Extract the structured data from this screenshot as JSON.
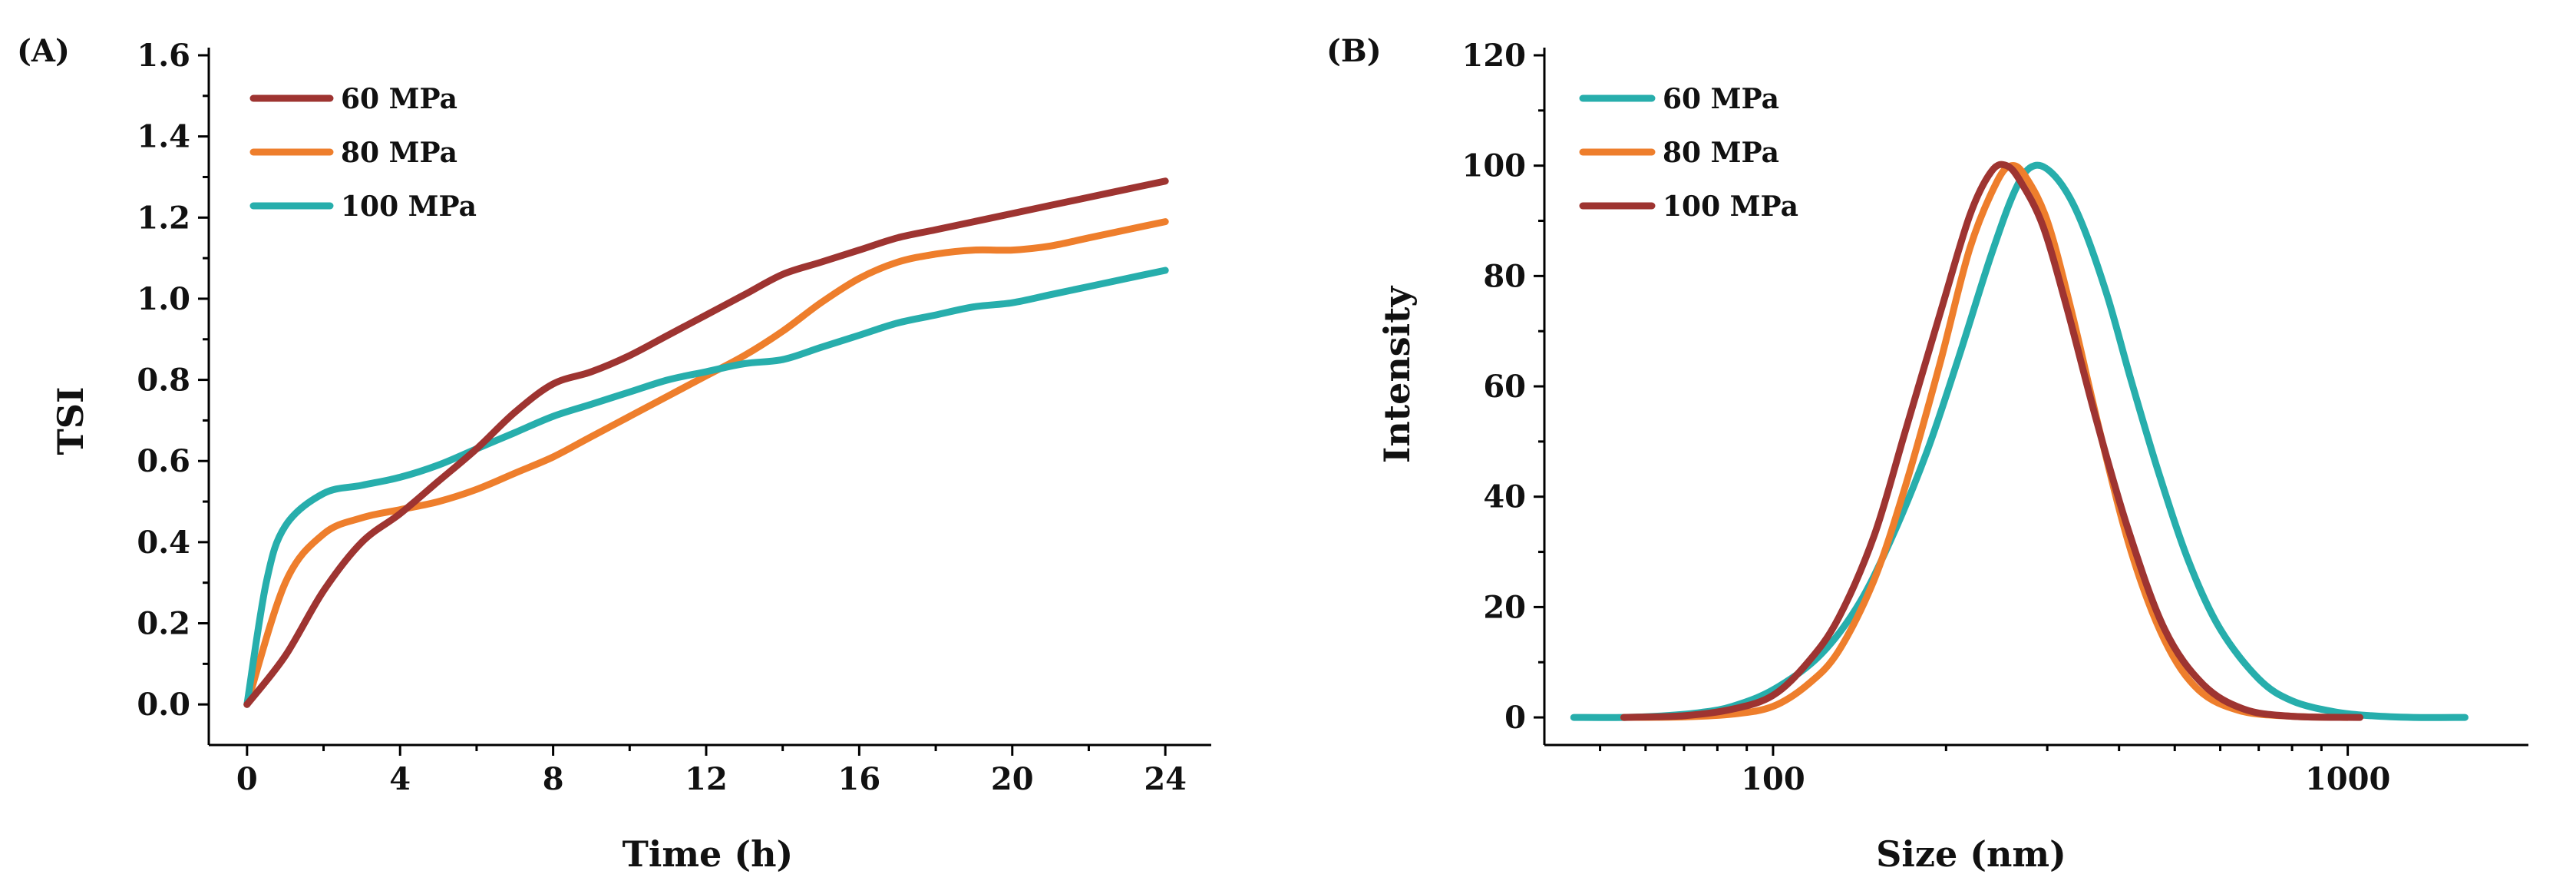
{
  "figure": {
    "panels": [
      "(A)",
      "(B)"
    ]
  },
  "colors": {
    "p60": "#9e3431",
    "p80": "#ee7e2c",
    "p100": "#27aeac"
  },
  "chart_data": [
    {
      "type": "line",
      "label": "(A)",
      "title": "",
      "xlabel": "Time (h)",
      "ylabel": "TSI",
      "xlim": [
        -1,
        25
      ],
      "ylim": [
        -0.1,
        1.6
      ],
      "xticks": [
        0,
        4,
        8,
        12,
        16,
        20,
        24
      ],
      "yticks": [
        0.0,
        0.2,
        0.4,
        0.6,
        0.8,
        1.0,
        1.2,
        1.4,
        1.6
      ],
      "xtick_labels": [
        "0",
        "4",
        "8",
        "12",
        "16",
        "20",
        "24"
      ],
      "ytick_labels": [
        "0.0",
        "0.2",
        "0.4",
        "0.6",
        "0.8",
        "1.0",
        "1.2",
        "1.4",
        "1.6"
      ],
      "legend_position": "top-left",
      "series": [
        {
          "name": "60 MPa",
          "color_key": "p60",
          "x": [
            0,
            1,
            2,
            3,
            4,
            5,
            6,
            7,
            8,
            9,
            10,
            11,
            12,
            13,
            14,
            15,
            16,
            17,
            18,
            19,
            20,
            21,
            22,
            23,
            24
          ],
          "y": [
            0,
            0.12,
            0.28,
            0.4,
            0.47,
            0.55,
            0.63,
            0.72,
            0.79,
            0.82,
            0.86,
            0.91,
            0.96,
            1.01,
            1.06,
            1.09,
            1.12,
            1.15,
            1.17,
            1.19,
            1.21,
            1.23,
            1.25,
            1.27,
            1.29
          ]
        },
        {
          "name": "80 MPa",
          "color_key": "p80",
          "x": [
            0,
            1,
            2,
            3,
            4,
            5,
            6,
            7,
            8,
            9,
            10,
            11,
            12,
            13,
            14,
            15,
            16,
            17,
            18,
            19,
            20,
            21,
            22,
            23,
            24
          ],
          "y": [
            0,
            0.3,
            0.42,
            0.46,
            0.48,
            0.5,
            0.53,
            0.57,
            0.61,
            0.66,
            0.71,
            0.76,
            0.81,
            0.86,
            0.92,
            0.99,
            1.05,
            1.09,
            1.11,
            1.12,
            1.12,
            1.13,
            1.15,
            1.17,
            1.19
          ]
        },
        {
          "name": "100 MPa",
          "color_key": "p100",
          "x": [
            0,
            0.5,
            1,
            2,
            3,
            4,
            5,
            6,
            7,
            8,
            9,
            10,
            11,
            12,
            13,
            14,
            15,
            16,
            17,
            18,
            19,
            20,
            21,
            22,
            23,
            24
          ],
          "y": [
            0,
            0.3,
            0.44,
            0.52,
            0.54,
            0.56,
            0.59,
            0.63,
            0.67,
            0.71,
            0.74,
            0.77,
            0.8,
            0.82,
            0.84,
            0.85,
            0.88,
            0.91,
            0.94,
            0.96,
            0.98,
            0.99,
            1.01,
            1.03,
            1.05,
            1.07
          ]
        }
      ]
    },
    {
      "type": "line",
      "label": "(B)",
      "title": "",
      "xlabel": "Size (nm)",
      "ylabel": "Intensity",
      "xscale": "log",
      "xlim": [
        40,
        2000
      ],
      "ylim": [
        -5,
        120
      ],
      "xticks": [
        100,
        1000
      ],
      "yticks": [
        0,
        20,
        40,
        60,
        80,
        100,
        120
      ],
      "xtick_labels": [
        "100",
        "1000"
      ],
      "ytick_labels": [
        "0",
        "20",
        "40",
        "60",
        "80",
        "100",
        "120"
      ],
      "legend_position": "top-left",
      "series": [
        {
          "name": "60 MPa",
          "color_key": "p100",
          "x": [
            45,
            55,
            65,
            75,
            85,
            100,
            120,
            140,
            160,
            185,
            210,
            240,
            265,
            285,
            310,
            340,
            380,
            420,
            470,
            530,
            600,
            700,
            800,
            950,
            1100,
            1300,
            1600
          ],
          "y": [
            0,
            0,
            0.3,
            0.9,
            2,
            5,
            11,
            20,
            32,
            48,
            65,
            84,
            96,
            100,
            98,
            91,
            77,
            61,
            44,
            28,
            16,
            7,
            3,
            1,
            0.3,
            0,
            0
          ]
        },
        {
          "name": "80 MPa",
          "color_key": "p80",
          "x": [
            55,
            70,
            85,
            100,
            115,
            130,
            150,
            170,
            195,
            220,
            245,
            260,
            275,
            300,
            330,
            370,
            420,
            480,
            550,
            650,
            800,
            1000
          ],
          "y": [
            0,
            0.1,
            0.6,
            2,
            6,
            12,
            25,
            42,
            64,
            85,
            97,
            100,
            98,
            90,
            74,
            52,
            30,
            14,
            5,
            1.2,
            0.2,
            0
          ]
        },
        {
          "name": "100 MPa",
          "color_key": "p60",
          "x": [
            55,
            70,
            85,
            100,
            115,
            130,
            150,
            170,
            195,
            220,
            240,
            255,
            270,
            295,
            325,
            365,
            415,
            480,
            560,
            660,
            800,
            1050
          ],
          "y": [
            0,
            0.3,
            1.5,
            4,
            10,
            18,
            33,
            52,
            73,
            91,
            99,
            100,
            97,
            89,
            74,
            54,
            34,
            16,
            6,
            1.5,
            0.2,
            0
          ]
        }
      ]
    }
  ]
}
